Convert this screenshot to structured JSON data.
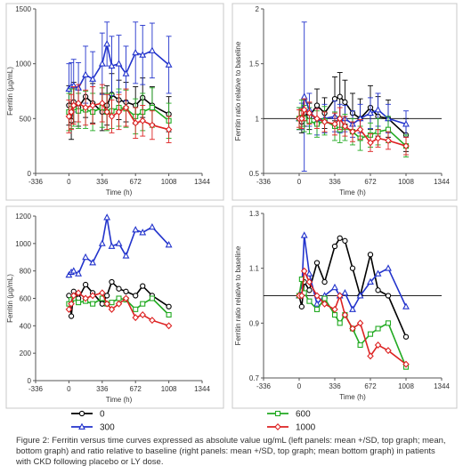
{
  "caption": "Figure 2:  Ferritin versus time curves expressed as absolute value ug/mL (left panels: mean +/SD, top graph; mean, bottom graph) and ratio relative to baseline (right panels: mean +/SD, top graph; mean bottom graph) in patients with CKD following placebo or LY dose.",
  "legend": [
    {
      "label": "0",
      "color": "#000000",
      "marker": "circle"
    },
    {
      "label": "300",
      "color": "#2233cc",
      "marker": "triangle"
    },
    {
      "label": "600",
      "color": "#22aa22",
      "marker": "square"
    },
    {
      "label": "1000",
      "color": "#dd2222",
      "marker": "diamond"
    }
  ],
  "chart_data": [
    {
      "type": "line",
      "panel": "top-left",
      "xlabel": "Time (h)",
      "ylabel": "Ferritin (µg/mL)",
      "xlim": [
        -336,
        1344
      ],
      "ylim": [
        0,
        1500
      ],
      "xticks": [
        -336,
        0,
        336,
        672,
        1008,
        1344
      ],
      "yticks": [
        0,
        500,
        1000,
        1500
      ],
      "error_bars": true,
      "series": [
        {
          "name": "0",
          "x": [
            0,
            24,
            48,
            96,
            168,
            240,
            336,
            384,
            432,
            504,
            576,
            672,
            744,
            840,
            1008
          ],
          "y": [
            620,
            480,
            650,
            600,
            700,
            640,
            560,
            620,
            720,
            670,
            650,
            620,
            690,
            620,
            540
          ],
          "err": [
            180,
            170,
            180,
            170,
            190,
            180,
            170,
            180,
            190,
            180,
            180,
            170,
            180,
            170,
            160
          ]
        },
        {
          "name": "300",
          "x": [
            0,
            24,
            48,
            96,
            168,
            240,
            336,
            384,
            432,
            504,
            576,
            672,
            744,
            840,
            1008
          ],
          "y": [
            770,
            790,
            800,
            780,
            900,
            860,
            1000,
            1180,
            980,
            1000,
            910,
            1100,
            1080,
            1120,
            990
          ],
          "err": [
            230,
            220,
            240,
            230,
            260,
            250,
            280,
            200,
            270,
            260,
            250,
            280,
            270,
            250,
            260
          ]
        },
        {
          "name": "600",
          "x": [
            0,
            24,
            48,
            96,
            168,
            240,
            336,
            384,
            432,
            504,
            576,
            672,
            744,
            840,
            1008
          ],
          "y": [
            560,
            590,
            600,
            570,
            580,
            560,
            600,
            560,
            570,
            600,
            590,
            520,
            560,
            600,
            480
          ],
          "err": [
            170,
            180,
            170,
            160,
            170,
            170,
            180,
            170,
            160,
            170,
            170,
            160,
            170,
            180,
            160
          ]
        },
        {
          "name": "1000",
          "x": [
            0,
            24,
            48,
            96,
            168,
            240,
            336,
            384,
            432,
            504,
            576,
            672,
            744,
            840,
            1008
          ],
          "y": [
            520,
            560,
            620,
            640,
            600,
            620,
            640,
            560,
            520,
            560,
            600,
            460,
            480,
            440,
            400
          ],
          "err": [
            150,
            160,
            170,
            170,
            160,
            170,
            170,
            160,
            150,
            160,
            170,
            140,
            140,
            130,
            120
          ]
        }
      ]
    },
    {
      "type": "line",
      "panel": "top-right",
      "xlabel": "Time (h)",
      "ylabel": "Ferritin ratio relative to baseline",
      "xlim": [
        -336,
        1344
      ],
      "ylim": [
        0.5,
        2
      ],
      "xticks": [
        -336,
        0,
        336,
        672,
        1008,
        1344
      ],
      "yticks": [
        0.5,
        1,
        1.5,
        2
      ],
      "reference_line": 1,
      "error_bars": true,
      "series": [
        {
          "name": "0",
          "x": [
            0,
            24,
            48,
            96,
            168,
            240,
            336,
            384,
            432,
            504,
            576,
            672,
            744,
            840,
            1008
          ],
          "y": [
            1.0,
            0.97,
            1.05,
            1.02,
            1.12,
            1.05,
            1.18,
            1.2,
            1.15,
            1.05,
            1.0,
            1.1,
            1.02,
            1.0,
            0.85
          ],
          "err": [
            0.1,
            0.1,
            0.12,
            0.12,
            0.15,
            0.14,
            0.2,
            0.22,
            0.2,
            0.18,
            0.18,
            0.2,
            0.18,
            0.17,
            0.15
          ]
        },
        {
          "name": "300",
          "x": [
            0,
            24,
            48,
            96,
            168,
            240,
            336,
            384,
            432,
            504,
            576,
            672,
            744,
            840,
            1008
          ],
          "y": [
            1.0,
            1.02,
            1.2,
            1.08,
            0.97,
            1.0,
            1.02,
            1.0,
            1.0,
            0.95,
            1.0,
            1.05,
            1.08,
            1.0,
            0.95
          ],
          "err": [
            0.1,
            0.12,
            0.68,
            0.15,
            0.12,
            0.13,
            0.14,
            0.13,
            0.12,
            0.12,
            0.13,
            0.14,
            0.15,
            0.13,
            0.12
          ]
        },
        {
          "name": "600",
          "x": [
            0,
            24,
            48,
            96,
            168,
            240,
            336,
            384,
            432,
            504,
            576,
            672,
            744,
            840,
            1008
          ],
          "y": [
            1.0,
            1.05,
            1.0,
            0.98,
            0.95,
            0.98,
            0.93,
            0.9,
            0.92,
            0.88,
            0.82,
            0.85,
            0.88,
            0.9,
            0.75
          ],
          "err": [
            0.1,
            0.12,
            0.12,
            0.12,
            0.12,
            0.13,
            0.13,
            0.12,
            0.12,
            0.12,
            0.11,
            0.11,
            0.12,
            0.12,
            0.1
          ]
        },
        {
          "name": "1000",
          "x": [
            0,
            24,
            48,
            96,
            168,
            240,
            336,
            384,
            432,
            504,
            576,
            672,
            744,
            840,
            1008
          ],
          "y": [
            1.0,
            1.0,
            1.08,
            1.05,
            1.0,
            0.97,
            0.95,
            1.0,
            0.93,
            0.88,
            0.9,
            0.78,
            0.82,
            0.8,
            0.75
          ],
          "err": [
            0.08,
            0.09,
            0.1,
            0.1,
            0.09,
            0.09,
            0.1,
            0.1,
            0.09,
            0.09,
            0.09,
            0.08,
            0.08,
            0.08,
            0.08
          ]
        }
      ]
    },
    {
      "type": "line",
      "panel": "bottom-left",
      "xlabel": "Time (h)",
      "ylabel": "Ferritin (µg/mL)",
      "xlim": [
        -336,
        1344
      ],
      "ylim": [
        0,
        1200
      ],
      "xticks": [
        -336,
        0,
        336,
        672,
        1008,
        1344
      ],
      "yticks": [
        0,
        200,
        400,
        600,
        800,
        1000,
        1200
      ],
      "error_bars": false,
      "series": [
        {
          "name": "0",
          "x": [
            0,
            24,
            48,
            96,
            168,
            240,
            336,
            384,
            432,
            504,
            576,
            672,
            744,
            840,
            1008
          ],
          "y": [
            620,
            470,
            650,
            600,
            700,
            640,
            560,
            620,
            720,
            670,
            650,
            620,
            690,
            620,
            540
          ]
        },
        {
          "name": "300",
          "x": [
            0,
            24,
            48,
            96,
            168,
            240,
            336,
            384,
            432,
            504,
            576,
            672,
            744,
            840,
            1008
          ],
          "y": [
            770,
            790,
            800,
            780,
            900,
            860,
            1000,
            1190,
            980,
            1000,
            910,
            1100,
            1080,
            1120,
            990
          ]
        },
        {
          "name": "600",
          "x": [
            0,
            24,
            48,
            96,
            168,
            240,
            336,
            384,
            432,
            504,
            576,
            672,
            744,
            840,
            1008
          ],
          "y": [
            560,
            590,
            600,
            570,
            580,
            560,
            600,
            560,
            570,
            600,
            590,
            520,
            560,
            600,
            480
          ]
        },
        {
          "name": "1000",
          "x": [
            0,
            24,
            48,
            96,
            168,
            240,
            336,
            384,
            432,
            504,
            576,
            672,
            744,
            840,
            1008
          ],
          "y": [
            520,
            560,
            620,
            640,
            600,
            620,
            640,
            560,
            520,
            560,
            600,
            460,
            480,
            440,
            400
          ]
        }
      ]
    },
    {
      "type": "line",
      "panel": "bottom-right",
      "xlabel": "Time (h)",
      "ylabel": "Ferritin ratio relative to baseline",
      "xlim": [
        -336,
        1344
      ],
      "ylim": [
        0.7,
        1.3
      ],
      "xticks": [
        -336,
        0,
        336,
        672,
        1008,
        1344
      ],
      "yticks": [
        0.7,
        0.9,
        1.1,
        1.3
      ],
      "reference_line": 1,
      "error_bars": false,
      "series": [
        {
          "name": "0",
          "x": [
            0,
            24,
            48,
            96,
            168,
            240,
            336,
            384,
            432,
            504,
            576,
            672,
            744,
            840,
            1008
          ],
          "y": [
            1.0,
            0.96,
            1.05,
            1.02,
            1.12,
            1.05,
            1.18,
            1.21,
            1.2,
            1.1,
            1.0,
            1.15,
            1.02,
            1.0,
            0.85
          ]
        },
        {
          "name": "300",
          "x": [
            0,
            24,
            48,
            96,
            168,
            240,
            336,
            384,
            432,
            504,
            576,
            672,
            744,
            840,
            1008
          ],
          "y": [
            1.0,
            1.02,
            1.22,
            1.08,
            0.97,
            1.0,
            1.03,
            1.0,
            1.01,
            0.95,
            1.0,
            1.05,
            1.08,
            1.1,
            0.96
          ]
        },
        {
          "name": "600",
          "x": [
            0,
            24,
            48,
            96,
            168,
            240,
            336,
            384,
            432,
            504,
            576,
            672,
            744,
            840,
            1008
          ],
          "y": [
            1.0,
            1.06,
            1.01,
            0.98,
            0.95,
            0.99,
            0.93,
            0.9,
            0.93,
            0.88,
            0.82,
            0.86,
            0.88,
            0.9,
            0.74
          ]
        },
        {
          "name": "1000",
          "x": [
            0,
            24,
            48,
            96,
            168,
            240,
            336,
            384,
            432,
            504,
            576,
            672,
            744,
            840,
            1008
          ],
          "y": [
            1.0,
            1.0,
            1.09,
            1.05,
            1.0,
            0.97,
            0.95,
            1.0,
            0.93,
            0.88,
            0.9,
            0.78,
            0.82,
            0.8,
            0.75
          ]
        }
      ]
    }
  ]
}
